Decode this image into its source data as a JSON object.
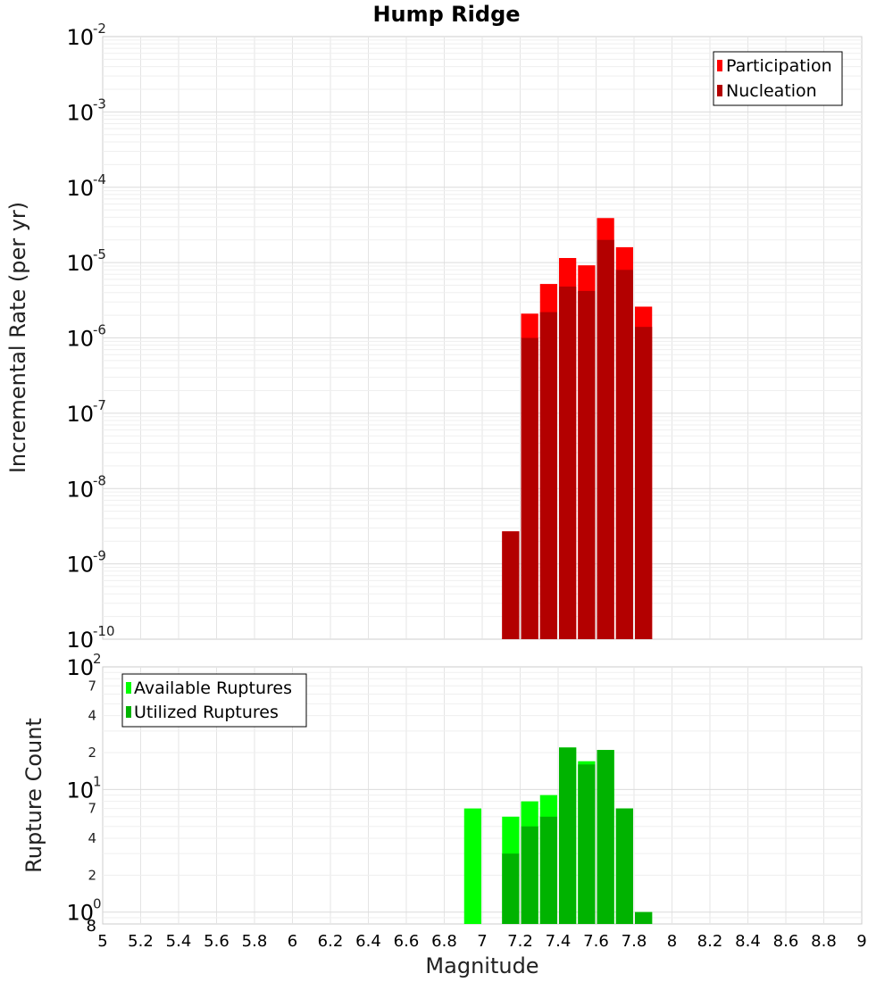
{
  "chart_data": [
    {
      "type": "bar",
      "title": "Hump Ridge",
      "xlabel": "Magnitude",
      "ylabel": "Incremental Rate (per yr)",
      "yscale": "log",
      "xlim": [
        5,
        9
      ],
      "ylim": [
        1e-10,
        0.01
      ],
      "x_ticks": [
        "5",
        "5.2",
        "5.4",
        "5.6",
        "5.8",
        "6",
        "6.2",
        "6.4",
        "6.6",
        "6.8",
        "7",
        "7.2",
        "7.4",
        "7.6",
        "7.8",
        "8",
        "8.2",
        "8.4",
        "8.6",
        "8.8",
        "9"
      ],
      "y_major_exponents": [
        "-10",
        "-9",
        "-8",
        "-7",
        "-6",
        "-5",
        "-4",
        "-3",
        "-2"
      ],
      "y_base_label": "10",
      "bin_width": 0.1,
      "legend": [
        {
          "name": "Participation",
          "color": "#ff0000"
        },
        {
          "name": "Nucleation",
          "color": "#b30000"
        }
      ],
      "series": [
        {
          "name": "Participation",
          "color": "#ff0000",
          "x": [
            7.15,
            7.25,
            7.35,
            7.45,
            7.55,
            7.65,
            7.75,
            7.85
          ],
          "values": [
            2.7e-09,
            2.1e-06,
            5.2e-06,
            1.15e-05,
            9.2e-06,
            3.9e-05,
            1.6e-05,
            2.6e-06
          ]
        },
        {
          "name": "Nucleation",
          "color": "#b30000",
          "x": [
            7.15,
            7.25,
            7.35,
            7.45,
            7.55,
            7.65,
            7.75,
            7.85
          ],
          "values": [
            2.7e-09,
            1e-06,
            2.2e-06,
            4.8e-06,
            4.2e-06,
            2e-05,
            8e-06,
            1.4e-06
          ]
        }
      ]
    },
    {
      "type": "bar",
      "title": "",
      "xlabel": "Magnitude",
      "ylabel": "Rupture Count",
      "yscale": "log",
      "xlim": [
        5,
        9
      ],
      "ylim": [
        0.8,
        100
      ],
      "y_major_exponents": [
        "0",
        "1",
        "2"
      ],
      "y_base_label": "10",
      "y_minor_labels": [
        "2",
        "4",
        "7"
      ],
      "y_bottom_label": "8",
      "bin_width": 0.1,
      "legend": [
        {
          "name": "Available Ruptures",
          "color": "#00ff00"
        },
        {
          "name": "Utilized Ruptures",
          "color": "#00b300"
        }
      ],
      "series": [
        {
          "name": "Available Ruptures",
          "color": "#00ff00",
          "x": [
            6.95,
            7.15,
            7.25,
            7.35,
            7.45,
            7.55,
            7.65,
            7.75,
            7.85
          ],
          "values": [
            7,
            6,
            8,
            9,
            22,
            17,
            21,
            7,
            1
          ]
        },
        {
          "name": "Utilized Ruptures",
          "color": "#00b300",
          "x": [
            7.15,
            7.25,
            7.35,
            7.45,
            7.55,
            7.65,
            7.75,
            7.85
          ],
          "values": [
            3,
            5,
            6,
            22,
            16,
            21,
            7,
            1
          ]
        }
      ]
    }
  ]
}
